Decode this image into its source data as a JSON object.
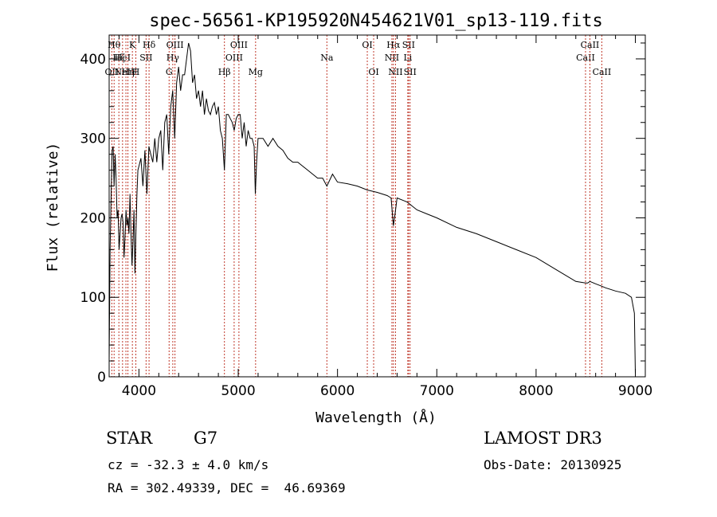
{
  "chart_data": {
    "type": "line",
    "title": "spec-56561-KP195920N454621V01_sp13-119.fits",
    "xlabel": "Wavelength (Å)",
    "ylabel": "Flux (relative)",
    "xlim": [
      3700,
      9100
    ],
    "ylim": [
      0,
      430
    ],
    "xticks": [
      4000,
      5000,
      6000,
      7000,
      8000,
      9000
    ],
    "yticks": [
      0,
      100,
      200,
      300,
      400
    ],
    "grid": false,
    "series": [
      {
        "name": "spectrum",
        "x": [
          3700,
          3710,
          3720,
          3730,
          3740,
          3750,
          3760,
          3770,
          3780,
          3790,
          3800,
          3810,
          3820,
          3830,
          3840,
          3850,
          3860,
          3870,
          3880,
          3890,
          3900,
          3910,
          3920,
          3930,
          3940,
          3950,
          3960,
          3970,
          3980,
          3990,
          4000,
          4020,
          4040,
          4060,
          4080,
          4100,
          4120,
          4140,
          4160,
          4180,
          4200,
          4220,
          4240,
          4260,
          4280,
          4300,
          4320,
          4340,
          4360,
          4380,
          4400,
          4420,
          4440,
          4460,
          4480,
          4500,
          4520,
          4540,
          4560,
          4580,
          4600,
          4620,
          4640,
          4660,
          4680,
          4700,
          4720,
          4740,
          4760,
          4780,
          4800,
          4820,
          4840,
          4861,
          4880,
          4900,
          4920,
          4940,
          4960,
          4980,
          5000,
          5020,
          5040,
          5060,
          5080,
          5100,
          5120,
          5140,
          5160,
          5172,
          5185,
          5200,
          5250,
          5300,
          5350,
          5400,
          5450,
          5500,
          5550,
          5600,
          5650,
          5700,
          5750,
          5800,
          5850,
          5893,
          5950,
          6000,
          6100,
          6200,
          6300,
          6400,
          6500,
          6540,
          6563,
          6580,
          6600,
          6700,
          6800,
          6900,
          7000,
          7200,
          7400,
          7600,
          7800,
          8000,
          8200,
          8400,
          8498,
          8520,
          8542,
          8600,
          8662,
          8700,
          8800,
          8900,
          8960,
          8990,
          9000
        ],
        "y": [
          20,
          160,
          230,
          285,
          290,
          240,
          280,
          250,
          200,
          210,
          160,
          180,
          200,
          205,
          195,
          150,
          175,
          210,
          190,
          200,
          180,
          230,
          180,
          140,
          170,
          210,
          130,
          185,
          230,
          260,
          265,
          275,
          240,
          285,
          230,
          290,
          280,
          270,
          300,
          270,
          300,
          310,
          260,
          320,
          330,
          280,
          340,
          360,
          300,
          370,
          390,
          360,
          380,
          380,
          400,
          420,
          410,
          370,
          380,
          350,
          360,
          340,
          360,
          330,
          350,
          335,
          330,
          340,
          345,
          330,
          340,
          310,
          300,
          260,
          330,
          330,
          325,
          320,
          310,
          325,
          330,
          330,
          300,
          320,
          290,
          310,
          300,
          300,
          290,
          230,
          270,
          300,
          300,
          290,
          300,
          290,
          285,
          275,
          270,
          270,
          265,
          260,
          255,
          250,
          250,
          240,
          255,
          245,
          243,
          240,
          235,
          232,
          228,
          225,
          190,
          205,
          225,
          220,
          210,
          205,
          200,
          188,
          180,
          170,
          160,
          150,
          135,
          120,
          118,
          118,
          120,
          117,
          114,
          112,
          108,
          105,
          100,
          80,
          4
        ]
      }
    ],
    "lines": [
      {
        "wl": 3727,
        "label": "OII",
        "row": 3
      },
      {
        "wl": 3750,
        "label": "Hθ",
        "row": 1
      },
      {
        "wl": 3798,
        "label": "Hζ",
        "row": 2
      },
      {
        "wl": 3835,
        "label": "HeI",
        "row": 2
      },
      {
        "wl": 3869,
        "label": "NeIII",
        "row": 3
      },
      {
        "wl": 3889,
        "label": "Hη",
        "row": 3
      },
      {
        "wl": 3934,
        "label": "K",
        "row": 1
      },
      {
        "wl": 3969,
        "label": "H",
        "row": 3
      },
      {
        "wl": 4072,
        "label": "SII",
        "row": 2
      },
      {
        "wl": 4102,
        "label": "Hδ",
        "row": 1
      },
      {
        "wl": 4304,
        "label": "G",
        "row": 3
      },
      {
        "wl": 4341,
        "label": "Hγ",
        "row": 2
      },
      {
        "wl": 4363,
        "label": "OIII",
        "row": 1
      },
      {
        "wl": 4861,
        "label": "Hβ",
        "row": 3
      },
      {
        "wl": 4959,
        "label": "OIII",
        "row": 2
      },
      {
        "wl": 5007,
        "label": "OIII",
        "row": 1
      },
      {
        "wl": 5175,
        "label": "Mg",
        "row": 3
      },
      {
        "wl": 5893,
        "label": "Na",
        "row": 2
      },
      {
        "wl": 6300,
        "label": "OI",
        "row": 1
      },
      {
        "wl": 6364,
        "label": "OI",
        "row": 3
      },
      {
        "wl": 6548,
        "label": "NII",
        "row": 2
      },
      {
        "wl": 6563,
        "label": "Hα",
        "row": 1
      },
      {
        "wl": 6584,
        "label": "NII",
        "row": 3
      },
      {
        "wl": 6708,
        "label": "Li",
        "row": 2
      },
      {
        "wl": 6716,
        "label": "SII",
        "row": 1
      },
      {
        "wl": 6731,
        "label": "SII",
        "row": 3
      },
      {
        "wl": 8498,
        "label": "CaII",
        "row": 2
      },
      {
        "wl": 8542,
        "label": "CaII",
        "row": 1
      },
      {
        "wl": 8662,
        "label": "CaII",
        "row": 3
      }
    ]
  },
  "info": {
    "class_label": "STAR",
    "subclass": "G7",
    "redshift": "cz = -32.3 ± 4.0 km/s",
    "coords": "RA = 302.49339, DEC =  46.69369",
    "survey": "LAMOST DR3",
    "obs_date": "Obs-Date: 20130925"
  }
}
